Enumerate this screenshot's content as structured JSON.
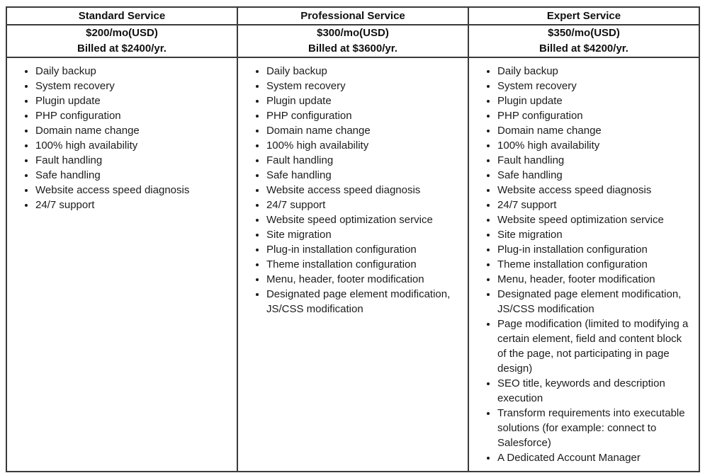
{
  "table": {
    "colors": {
      "border": "#3a3a3a",
      "text": "#1c1c1c",
      "background": "#ffffff"
    },
    "columns": [
      {
        "header": "Standard Service",
        "price": "$200/mo(USD)",
        "billing": "Billed at $2400/yr.",
        "features": [
          "Daily backup",
          "System recovery",
          "Plugin update",
          "PHP configuration",
          "Domain name change",
          "100% high availability",
          "Fault handling",
          "Safe handling",
          "Website access speed diagnosis",
          "24/7 support"
        ]
      },
      {
        "header": "Professional Service",
        "price": "$300/mo(USD)",
        "billing": "Billed at $3600/yr.",
        "features": [
          "Daily backup",
          "System recovery",
          "Plugin update",
          "PHP configuration",
          "Domain name change",
          "100% high availability",
          "Fault handling",
          "Safe handling",
          "Website access speed diagnosis",
          "24/7 support",
          "Website speed optimization service",
          "Site migration",
          "Plug-in installation configuration",
          "Theme installation configuration",
          "Menu, header, footer modification",
          "Designated page element modification, JS/CSS modification"
        ]
      },
      {
        "header": "Expert Service",
        "price": "$350/mo(USD)",
        "billing": "Billed at $4200/yr.",
        "features": [
          "Daily backup",
          "System recovery",
          "Plugin update",
          "PHP configuration",
          "Domain name change",
          "100% high availability",
          "Fault handling",
          "Safe handling",
          "Website access speed diagnosis",
          "24/7 support",
          "Website speed optimization service",
          "Site migration",
          "Plug-in installation configuration",
          "Theme installation configuration",
          "Menu, header, footer modification",
          "Designated page element modification, JS/CSS modification",
          "Page modification (limited to modifying a certain element, field and content block of the page, not participating in page design)",
          "SEO title, keywords and description execution",
          "Transform requirements into executable solutions (for example: connect to Salesforce)",
          "A Dedicated Account Manager"
        ]
      }
    ]
  }
}
